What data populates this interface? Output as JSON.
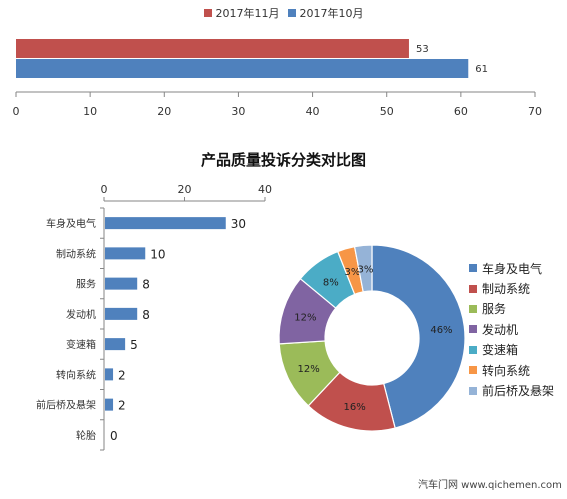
{
  "colors": {
    "blue": "#4f81bd",
    "red": "#c0504d",
    "green": "#9bbb59",
    "purple": "#8064a2",
    "aqua": "#4bacc6",
    "orange": "#f79646",
    "lightblue": "#95b3d7",
    "axis": "#868686",
    "grid": "#d9d9d9"
  },
  "top_legend": [
    {
      "label": "2017年11月",
      "color": "#c0504d"
    },
    {
      "label": "2017年10月",
      "color": "#4f81bd"
    }
  ],
  "title": "产品质量投诉分类对比图",
  "footer": "汽车门网 www.qichemen.com",
  "chart_data": [
    {
      "type": "bar",
      "orientation": "horizontal",
      "series": [
        {
          "name": "2017年11月",
          "values": [
            53
          ],
          "color": "#c0504d"
        },
        {
          "name": "2017年10月",
          "values": [
            61
          ],
          "color": "#4f81bd"
        }
      ],
      "xlim": [
        0,
        70
      ],
      "ticks": [
        0,
        10,
        20,
        30,
        40,
        50,
        60,
        70
      ],
      "grid": false,
      "legend": "top"
    },
    {
      "type": "bar",
      "orientation": "horizontal",
      "categories": [
        "车身及电气",
        "制动系统",
        "服务",
        "发动机",
        "变速箱",
        "转向系统",
        "前后桥及悬架",
        "轮胎"
      ],
      "values": [
        30,
        10,
        8,
        8,
        5,
        2,
        2,
        0
      ],
      "xlim": [
        0,
        40
      ],
      "ticks": [
        0,
        20,
        40
      ],
      "axis_position": "top",
      "color": "#4f81bd"
    },
    {
      "type": "pie",
      "donut": true,
      "categories": [
        "车身及电气",
        "制动系统",
        "服务",
        "发动机",
        "变速箱",
        "转向系统",
        "前后桥及悬架"
      ],
      "values": [
        46,
        16,
        12,
        12,
        8,
        3,
        3
      ],
      "labels": [
        "46%",
        "16%",
        "12%",
        "12%",
        "8%",
        "3%",
        "3%"
      ],
      "colors": [
        "#4f81bd",
        "#c0504d",
        "#9bbb59",
        "#8064a2",
        "#4bacc6",
        "#f79646",
        "#95b3d7"
      ],
      "legend": "right"
    }
  ]
}
